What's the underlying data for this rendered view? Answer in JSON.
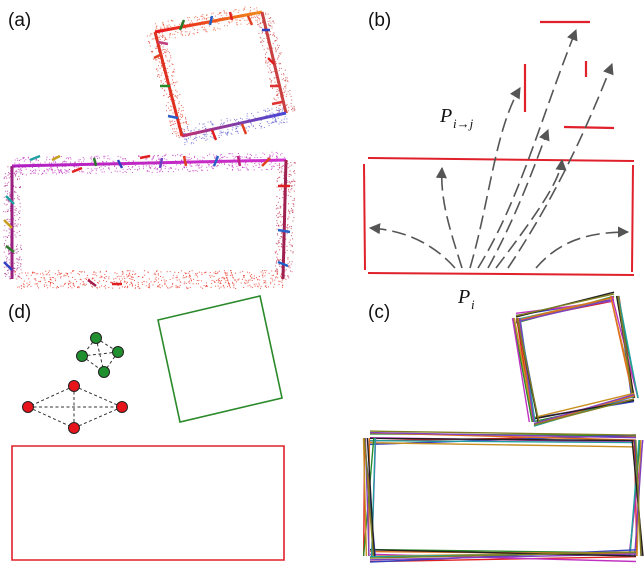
{
  "panels": {
    "a": {
      "label": "(a)"
    },
    "b": {
      "label": "(b)"
    },
    "c": {
      "label": "(c)"
    },
    "d": {
      "label": "(d)"
    }
  },
  "annotations": {
    "p_i_base": "P",
    "p_i_sub": "i",
    "p_ij_base": "P",
    "p_ij_sub": "i→j"
  },
  "colors": {
    "red": "#e0202a",
    "green": "#2a8a2a",
    "gray_arrow": "#555555",
    "node_red": "#e8141c",
    "node_green": "#1f8f2f"
  }
}
